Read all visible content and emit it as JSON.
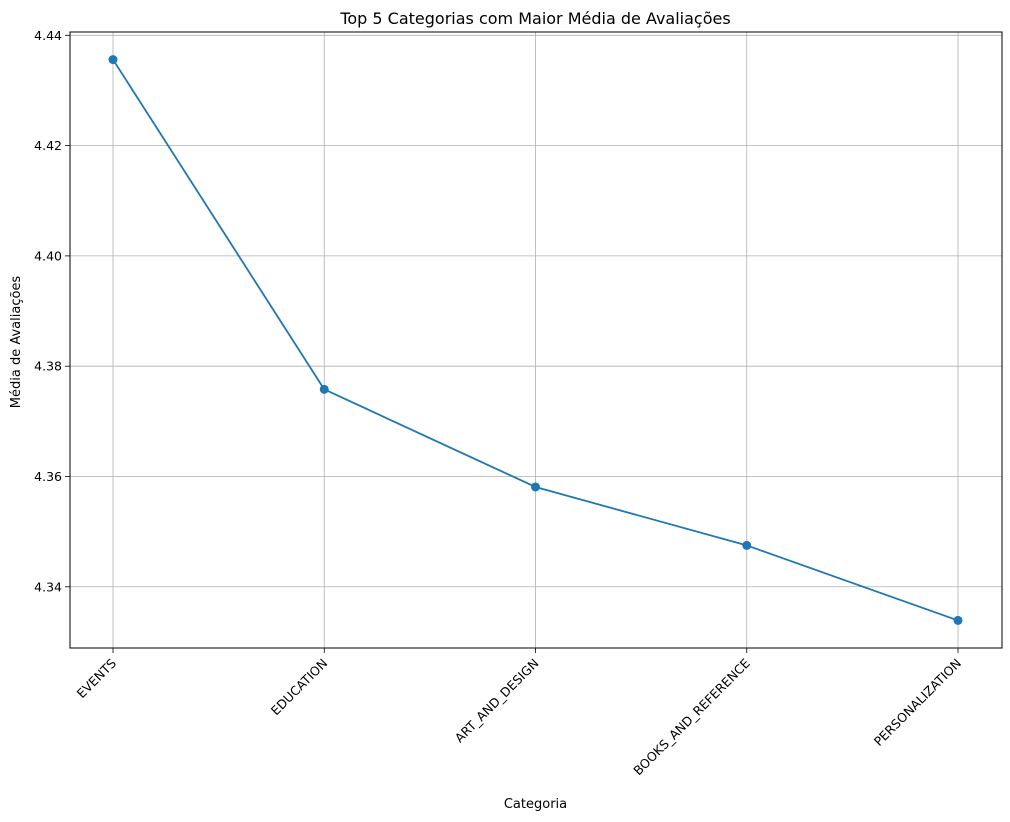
{
  "chart_data": {
    "type": "line",
    "title": "Top 5 Categorias com Maior Média de Avaliações",
    "xlabel": "Categoria",
    "ylabel": "Média de Avaliações",
    "categories": [
      "EVENTS",
      "EDUCATION",
      "ART_AND_DESIGN",
      "BOOKS_AND_REFERENCE",
      "PERSONALIZATION"
    ],
    "series": [
      {
        "values": [
          4.4356,
          4.3758,
          4.3581,
          4.3475,
          4.3339
        ]
      }
    ],
    "yticks": [
      "4.34",
      "4.36",
      "4.38",
      "4.40",
      "4.42",
      "4.44"
    ],
    "ylim": [
      4.3289,
      4.4406
    ],
    "grid": true,
    "marker": "circle",
    "line_color": "#1f77b4"
  }
}
